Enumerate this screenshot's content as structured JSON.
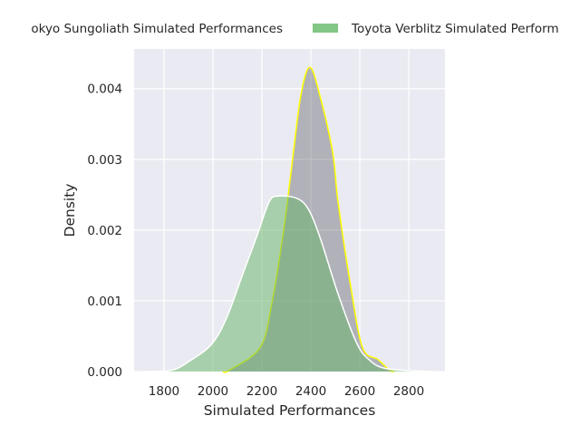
{
  "chart_data": {
    "type": "area",
    "title": "",
    "xlabel": "Simulated Performances",
    "ylabel": "Density",
    "xlim": [
      1678,
      2948
    ],
    "ylim": [
      0,
      0.00456
    ],
    "xticks": [
      "1800",
      "2000",
      "2200",
      "2400",
      "2600",
      "2800"
    ],
    "yticks": [
      "0.000",
      "0.001",
      "0.002",
      "0.003",
      "0.004"
    ],
    "grid": true,
    "legend_placement": "top, outside (clipped at both edges)",
    "colors": {
      "background": "#eaeaf2",
      "grid": "#ffffff",
      "tokyo_fill": "#3c3c46",
      "tokyo_edge": "#ffff00",
      "verblitz_fill": "#64b464",
      "verblitz_edge": "#ffffff",
      "legend_patch": "#82c785"
    },
    "series": [
      {
        "name": "okyo Sungoliath Simulated Performances",
        "x": [
          2040,
          2067,
          2193,
          2241,
          2289,
          2322,
          2359,
          2396,
          2437,
          2489,
          2511,
          2563,
          2611,
          2674,
          2722,
          2740
        ],
        "y": [
          0,
          2e-05,
          0.00034,
          0.00097,
          0.002,
          0.0029,
          0.0039,
          0.0043,
          0.0039,
          0.0031,
          0.0024,
          0.0012,
          0.00034,
          0.00017,
          2e-05,
          0
        ]
      },
      {
        "name": "Toyota Verblitz Simulated Perform",
        "x": [
          1733,
          1833,
          1896,
          1993,
          2056,
          2119,
          2178,
          2230,
          2267,
          2341,
          2389,
          2437,
          2511,
          2585,
          2637,
          2711,
          2896
        ],
        "y": [
          0,
          2e-05,
          0.00013,
          0.00038,
          0.00076,
          0.00135,
          0.0019,
          0.0024,
          0.00248,
          0.00245,
          0.0023,
          0.0019,
          0.0011,
          0.00042,
          0.00017,
          4e-05,
          0
        ]
      }
    ]
  }
}
